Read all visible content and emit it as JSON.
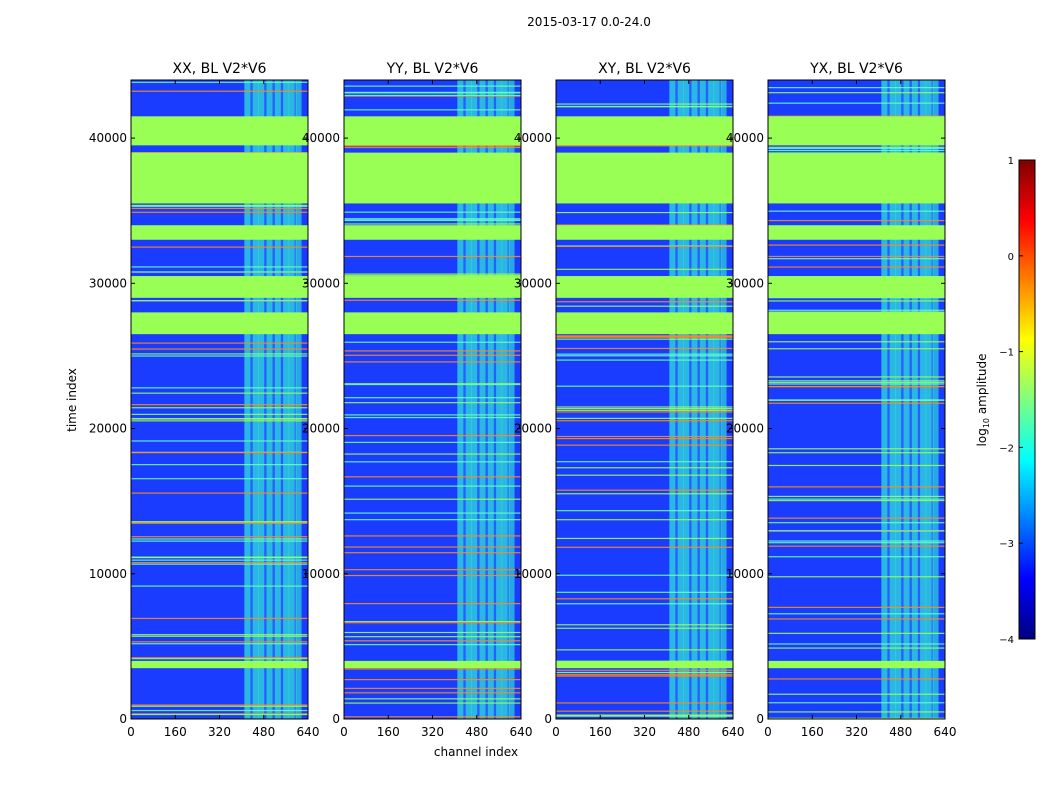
{
  "figure": {
    "suptitle": "2015-03-17 0.0-24.0",
    "ylabel": "time index",
    "xlabel": "channel index"
  },
  "colorbar": {
    "label": "log10 amplitude",
    "label_main": "log",
    "label_sub": "10",
    "label_tail": " amplitude",
    "range": [
      -4,
      1
    ],
    "ticks": [
      1,
      0,
      -1,
      -2,
      -3,
      -4
    ],
    "tick_labels": [
      "1",
      "0",
      "−1",
      "−2",
      "−3",
      "−4"
    ],
    "colormap": "jet",
    "colormap_stops": [
      "#00007f",
      "#0000ff",
      "#007fff",
      "#00ffff",
      "#7fff7f",
      "#ffff00",
      "#ff7f00",
      "#ff0000",
      "#7f0000"
    ]
  },
  "chart_data": {
    "type": "heatmap",
    "x_range": [
      0,
      640
    ],
    "y_range": [
      0,
      44000
    ],
    "x_ticks": [
      0,
      160,
      320,
      480,
      640
    ],
    "x_tick_labels": [
      "0",
      "160",
      "320",
      "480",
      "640"
    ],
    "y_ticks": [
      0,
      10000,
      20000,
      30000,
      40000
    ],
    "y_tick_labels": [
      "0",
      "10000",
      "20000",
      "30000",
      "40000"
    ],
    "panels": [
      {
        "title": "XX, BL V2*V6"
      },
      {
        "title": "YY, BL V2*V6"
      },
      {
        "title": "XY, BL V2*V6"
      },
      {
        "title": "YX, BL V2*V6"
      }
    ],
    "flagged_bands_time": [
      [
        3500,
        4000
      ],
      [
        26500,
        28000
      ],
      [
        29000,
        30500
      ],
      [
        33000,
        34000
      ],
      [
        35500,
        39000
      ],
      [
        39500,
        41500
      ]
    ],
    "rfi_channel_range": [
      410,
      600
    ],
    "rfi_channels": [
      410,
      440,
      460,
      490,
      520,
      550,
      570,
      595
    ],
    "colors": {
      "background_low": "#1a3cff",
      "flagged": "#99ff55",
      "rfi": "#33ffcc",
      "hot": "#ff8a1a"
    }
  }
}
